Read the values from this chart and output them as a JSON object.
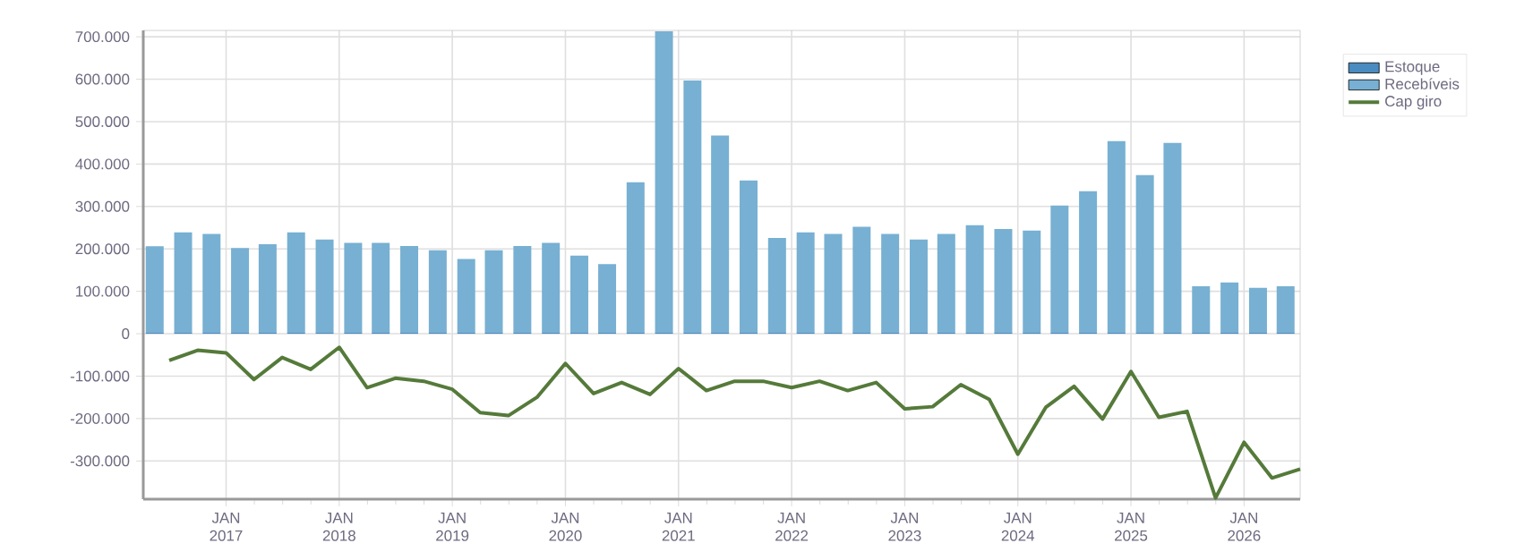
{
  "chart_data": {
    "type": "bar",
    "stacked": true,
    "grid": true,
    "legend": "top right",
    "xlim": [
      "2016-04-08",
      "2026-07-01"
    ],
    "ylim": [
      -390000,
      715000
    ],
    "xticks": [
      {
        "value": "2017-01-01",
        "label": "JAN 2017"
      },
      {
        "value": "2018-01-01",
        "label": "JAN 2018"
      },
      {
        "value": "2019-01-01",
        "label": "JAN 2019"
      },
      {
        "value": "2020-01-01",
        "label": "JAN 2020"
      },
      {
        "value": "2021-01-01",
        "label": "JAN 2021"
      },
      {
        "value": "2022-01-01",
        "label": "JAN 2022"
      },
      {
        "value": "2023-01-01",
        "label": "JAN 2023"
      },
      {
        "value": "2024-01-01",
        "label": "JAN 2024"
      },
      {
        "value": "2025-01-01",
        "label": "JAN 2025"
      },
      {
        "value": "2026-01-01",
        "label": "JAN 2026"
      }
    ],
    "yticks": [
      {
        "value": -300000,
        "label": "-300.000"
      },
      {
        "value": -200000,
        "label": "-200.000"
      },
      {
        "value": -100000,
        "label": "-100.000"
      },
      0,
      {
        "value": 100000,
        "label": "100.000"
      },
      {
        "value": 200000,
        "label": "200.000"
      },
      {
        "value": 300000,
        "label": "300.000"
      },
      {
        "value": 400000,
        "label": "400.000"
      },
      {
        "value": 500000,
        "label": "500.000"
      },
      {
        "value": 600000,
        "label": "600.000"
      },
      {
        "value": 700000,
        "label": "700.000"
      }
    ],
    "series": [
      {
        "name": "Estoque",
        "color": "#4a8bc0",
        "x": [
          "2016-05-15",
          "2016-08-15",
          "2016-11-15",
          "2017-02-15",
          "2017-05-15",
          "2017-08-15",
          "2017-11-15",
          "2018-02-15",
          "2018-05-15",
          "2018-08-15",
          "2018-11-15",
          "2019-02-15",
          "2019-05-15",
          "2019-08-15",
          "2019-11-15",
          "2020-02-15",
          "2020-05-15",
          "2020-08-15",
          "2020-11-15",
          "2021-02-15",
          "2021-05-15",
          "2021-08-15",
          "2021-11-15",
          "2022-02-15",
          "2022-05-15",
          "2022-08-15",
          "2022-11-15",
          "2023-02-15",
          "2023-05-15",
          "2023-08-15",
          "2023-11-15",
          "2024-02-15",
          "2024-05-15",
          "2024-08-15",
          "2024-11-15",
          "2025-02-15",
          "2025-05-15",
          "2025-08-15",
          "2025-11-15",
          "2026-02-15",
          "2026-05-15"
        ],
        "values": [
          3000,
          3000,
          3000,
          3000,
          3000,
          3000,
          3000,
          3000,
          3000,
          3000,
          3000,
          3000,
          3000,
          3000,
          3000,
          3000,
          3000,
          3000,
          3000,
          3000,
          3000,
          3000,
          3000,
          3000,
          3000,
          3000,
          3000,
          3000,
          3000,
          3000,
          3000,
          3000,
          3000,
          3000,
          3000,
          3000,
          3000,
          3000,
          3000,
          3000,
          3000
        ]
      },
      {
        "name": "Recebíveis",
        "color": "#77b0d2",
        "x": [
          "2016-05-15",
          "2016-08-15",
          "2016-11-15",
          "2017-02-15",
          "2017-05-15",
          "2017-08-15",
          "2017-11-15",
          "2018-02-15",
          "2018-05-15",
          "2018-08-15",
          "2018-11-15",
          "2019-02-15",
          "2019-05-15",
          "2019-08-15",
          "2019-11-15",
          "2020-02-15",
          "2020-05-15",
          "2020-08-15",
          "2020-11-15",
          "2021-02-15",
          "2021-05-15",
          "2021-08-15",
          "2021-11-15",
          "2022-02-15",
          "2022-05-15",
          "2022-08-15",
          "2022-11-15",
          "2023-02-15",
          "2023-05-15",
          "2023-08-15",
          "2023-11-15",
          "2024-02-15",
          "2024-05-15",
          "2024-08-15",
          "2024-11-15",
          "2025-02-15",
          "2025-05-15",
          "2025-08-15",
          "2025-11-15",
          "2026-02-15",
          "2026-05-15"
        ],
        "values": [
          203000,
          236000,
          232000,
          199000,
          208000,
          236000,
          219000,
          211000,
          211000,
          204000,
          194000,
          173000,
          194000,
          204000,
          211000,
          181000,
          161000,
          354000,
          710000,
          594000,
          464000,
          358000,
          223000,
          236000,
          232000,
          249000,
          232000,
          219000,
          232000,
          253000,
          244000,
          240000,
          299000,
          333000,
          451000,
          371000,
          447000,
          109000,
          118000,
          105000,
          109000
        ]
      },
      {
        "name": "Cap giro",
        "type": "line",
        "color": "#557a3a",
        "x": [
          "2016-07-01",
          "2016-10-01",
          "2017-01-01",
          "2017-04-01",
          "2017-07-01",
          "2017-10-01",
          "2018-01-01",
          "2018-04-01",
          "2018-07-01",
          "2018-10-01",
          "2019-01-01",
          "2019-04-01",
          "2019-07-01",
          "2019-10-01",
          "2020-01-01",
          "2020-04-01",
          "2020-07-01",
          "2020-10-01",
          "2021-01-01",
          "2021-04-01",
          "2021-07-01",
          "2021-10-01",
          "2022-01-01",
          "2022-04-01",
          "2022-07-01",
          "2022-10-01",
          "2023-01-01",
          "2023-04-01",
          "2023-07-01",
          "2023-10-01",
          "2024-01-01",
          "2024-04-01",
          "2024-07-01",
          "2024-10-01",
          "2025-01-01",
          "2025-04-01",
          "2025-07-01",
          "2025-10-01",
          "2026-01-01",
          "2026-04-01",
          "2026-07-01"
        ],
        "values": [
          -63000,
          -39000,
          -45000,
          -108000,
          -56000,
          -84000,
          -32000,
          -127000,
          -105000,
          -112000,
          -131000,
          -186000,
          -193000,
          -150000,
          -70000,
          -141000,
          -115000,
          -143000,
          -82000,
          -134000,
          -112000,
          -112000,
          -127000,
          -112000,
          -134000,
          -115000,
          -177000,
          -172000,
          -120000,
          -155000,
          -284000,
          -173000,
          -124000,
          -201000,
          -89000,
          -197000,
          -183000,
          -387000,
          -256000,
          -340000,
          -319000
        ]
      }
    ]
  }
}
